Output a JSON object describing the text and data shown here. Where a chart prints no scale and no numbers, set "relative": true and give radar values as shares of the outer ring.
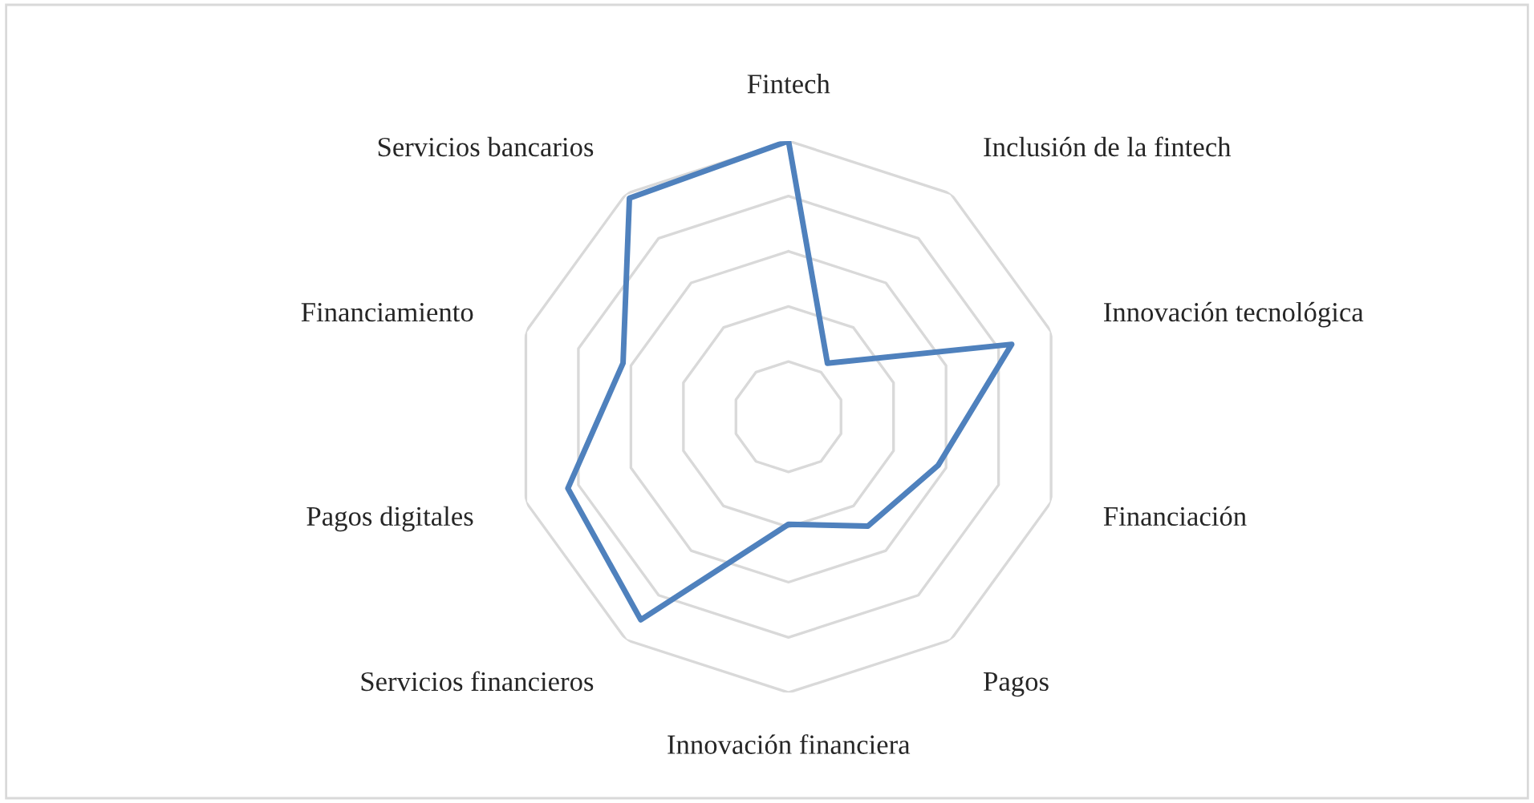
{
  "chart_data": {
    "type": "radar",
    "relative": true,
    "grid": true,
    "marker": "none",
    "line_style": "solid",
    "categories": [
      "Fintech",
      "Inclusión de la fintech",
      "Innovación tecnológica",
      "Financiación",
      "Pagos",
      "Innovación financiera",
      "Servicios financieros",
      "Pagos digitales",
      "Financiamiento",
      "Servicios bancarios"
    ],
    "series": [
      {
        "color": "#4f81bd",
        "values": [
          1.0,
          0.24,
          0.85,
          0.57,
          0.49,
          0.39,
          0.91,
          0.84,
          0.63,
          0.98
        ]
      }
    ]
  }
}
